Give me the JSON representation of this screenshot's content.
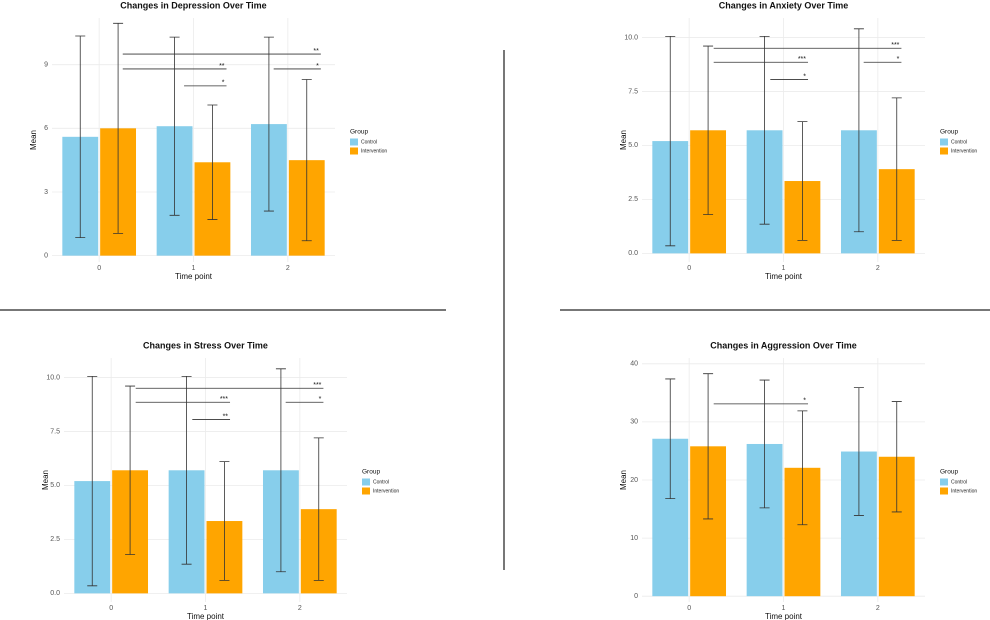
{
  "chart_data": [
    {
      "type": "bar",
      "title": "Changes in Depression Over Time",
      "x_label": "Time point",
      "y_label": "Mean",
      "categories": [
        "0",
        "1",
        "2"
      ],
      "legend_title": "Group",
      "grid": true,
      "ylim": [
        -0.3,
        11.2
      ],
      "yticks": [
        0,
        3,
        6,
        9
      ],
      "series": [
        {
          "name": "Control",
          "color": "#87ceeb",
          "values": [
            5.6,
            6.1,
            6.2
          ],
          "errors": [
            4.75,
            4.2,
            4.1
          ]
        },
        {
          "name": "Intervention",
          "color": "#ffa500",
          "values": [
            6.0,
            4.4,
            4.5
          ],
          "errors": [
            4.95,
            2.7,
            3.8
          ]
        }
      ],
      "brackets": [
        {
          "label": "**",
          "y": 9.5,
          "x": [
            0.25,
            2.35
          ]
        },
        {
          "label": "**",
          "y": 8.8,
          "x": [
            0.25,
            1.35
          ]
        },
        {
          "label": "*",
          "y": 8.8,
          "x": [
            1.85,
            2.35
          ]
        },
        {
          "label": "*",
          "y": 8.0,
          "x": [
            0.9,
            1.35
          ]
        }
      ]
    },
    {
      "type": "bar",
      "title": "Changes in Anxiety Over Time",
      "x_label": "Time point",
      "y_label": "Mean",
      "categories": [
        "0",
        "1",
        "2"
      ],
      "legend_title": "Group",
      "grid": true,
      "ylim": [
        -0.4,
        10.9
      ],
      "yticks": [
        {
          "value": 0,
          "label": "0.0"
        },
        2.5,
        {
          "value": 5,
          "label": "5.0"
        },
        7.5,
        {
          "value": 10,
          "label": "10.0"
        }
      ],
      "series": [
        {
          "name": "Control",
          "color": "#87ceeb",
          "values": [
            5.2,
            5.7,
            5.7
          ],
          "errors": [
            4.85,
            4.35,
            4.7
          ]
        },
        {
          "name": "Intervention",
          "color": "#ffa500",
          "values": [
            5.7,
            3.35,
            3.9
          ],
          "errors": [
            3.9,
            2.75,
            3.3
          ]
        }
      ],
      "brackets": [
        {
          "label": "***",
          "y": 9.5,
          "x": [
            0.26,
            2.25
          ]
        },
        {
          "label": "***",
          "y": 8.85,
          "x": [
            0.26,
            1.26
          ]
        },
        {
          "label": "*",
          "y": 8.85,
          "x": [
            1.85,
            2.25
          ]
        },
        {
          "label": "*",
          "y": 8.05,
          "x": [
            0.86,
            1.26
          ]
        }
      ]
    },
    {
      "type": "bar",
      "title": "Changes in Stress Over Time",
      "x_label": "Time point",
      "y_label": "Mean",
      "categories": [
        "0",
        "1",
        "2"
      ],
      "legend_title": "Group",
      "grid": true,
      "ylim": [
        -0.4,
        10.9
      ],
      "yticks": [
        {
          "value": 0,
          "label": "0.0"
        },
        2.5,
        {
          "value": 5,
          "label": "5.0"
        },
        7.5,
        {
          "value": 10,
          "label": "10.0"
        }
      ],
      "series": [
        {
          "name": "Control",
          "color": "#87ceeb",
          "values": [
            5.2,
            5.7,
            5.7
          ],
          "errors": [
            4.85,
            4.35,
            4.7
          ]
        },
        {
          "name": "Intervention",
          "color": "#ffa500",
          "values": [
            5.7,
            3.35,
            3.9
          ],
          "errors": [
            3.9,
            2.75,
            3.3
          ]
        }
      ],
      "brackets": [
        {
          "label": "***",
          "y": 9.5,
          "x": [
            0.26,
            2.25
          ]
        },
        {
          "label": "***",
          "y": 8.85,
          "x": [
            0.26,
            1.26
          ]
        },
        {
          "label": "*",
          "y": 8.85,
          "x": [
            1.85,
            2.25
          ]
        },
        {
          "label": "**",
          "y": 8.05,
          "x": [
            0.86,
            1.26
          ]
        }
      ]
    },
    {
      "type": "bar",
      "title": "Changes in Aggression Over Time",
      "x_label": "Time point",
      "y_label": "Mean",
      "categories": [
        "0",
        "1",
        "2"
      ],
      "legend_title": "Group",
      "grid": true,
      "ylim": [
        -1,
        41
      ],
      "yticks": [
        0,
        10,
        20,
        30,
        40
      ],
      "series": [
        {
          "name": "Control",
          "color": "#87ceeb",
          "values": [
            27.1,
            26.2,
            24.9
          ],
          "errors": [
            10.3,
            11,
            11
          ]
        },
        {
          "name": "Intervention",
          "color": "#ffa500",
          "values": [
            25.8,
            22.1,
            24.0
          ],
          "errors": [
            12.5,
            9.8,
            9.5
          ]
        }
      ],
      "brackets": [
        {
          "label": "*",
          "y": 33.1,
          "x": [
            0.26,
            1.26
          ]
        }
      ]
    }
  ]
}
